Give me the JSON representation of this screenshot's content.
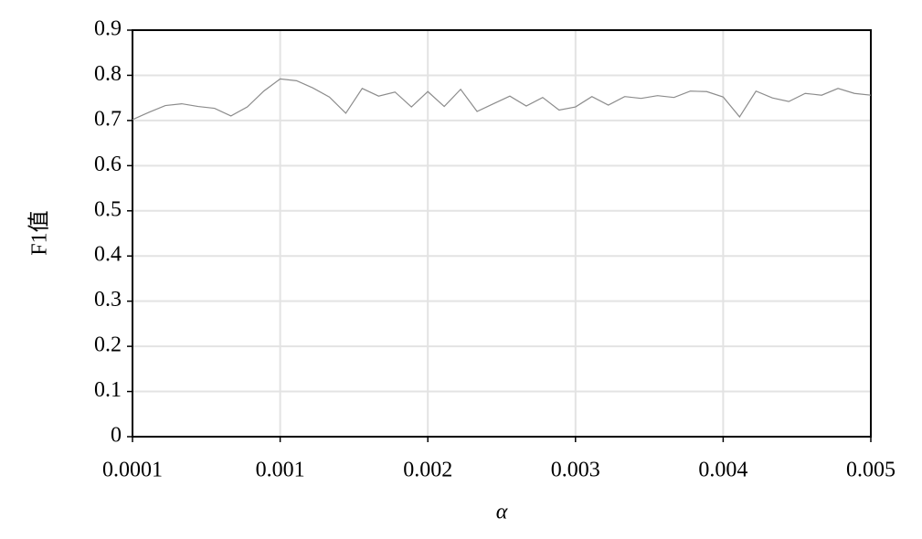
{
  "chart_data": {
    "type": "line",
    "x_label": "α",
    "y_label": "F1值",
    "categories": [
      "0.0001",
      null,
      null,
      null,
      null,
      null,
      null,
      null,
      null,
      "0.001",
      null,
      null,
      null,
      null,
      null,
      null,
      null,
      null,
      "0.002",
      null,
      null,
      null,
      null,
      null,
      null,
      null,
      null,
      "0.003",
      null,
      null,
      null,
      null,
      null,
      null,
      null,
      null,
      "0.004",
      null,
      null,
      null,
      null,
      null,
      null,
      null,
      null,
      "0.005"
    ],
    "series": [
      {
        "color": "#8c8c8c",
        "values": [
          0.702,
          0.718,
          0.733,
          0.737,
          0.731,
          0.727,
          0.71,
          0.73,
          0.765,
          0.792,
          0.788,
          0.772,
          0.752,
          0.716,
          0.771,
          0.754,
          0.763,
          0.73,
          0.764,
          0.731,
          0.769,
          0.72,
          0.737,
          0.754,
          0.732,
          0.751,
          0.723,
          0.73,
          0.753,
          0.734,
          0.753,
          0.749,
          0.755,
          0.751,
          0.765,
          0.764,
          0.752,
          0.708,
          0.765,
          0.75,
          0.742,
          0.76,
          0.756,
          0.771,
          0.76,
          0.756
        ]
      }
    ],
    "ylim": [
      0,
      0.9
    ],
    "yticks": [
      0,
      0.1,
      0.2,
      0.3,
      0.4,
      0.5,
      0.6,
      0.7,
      0.8,
      0.9
    ],
    "grid": true
  }
}
